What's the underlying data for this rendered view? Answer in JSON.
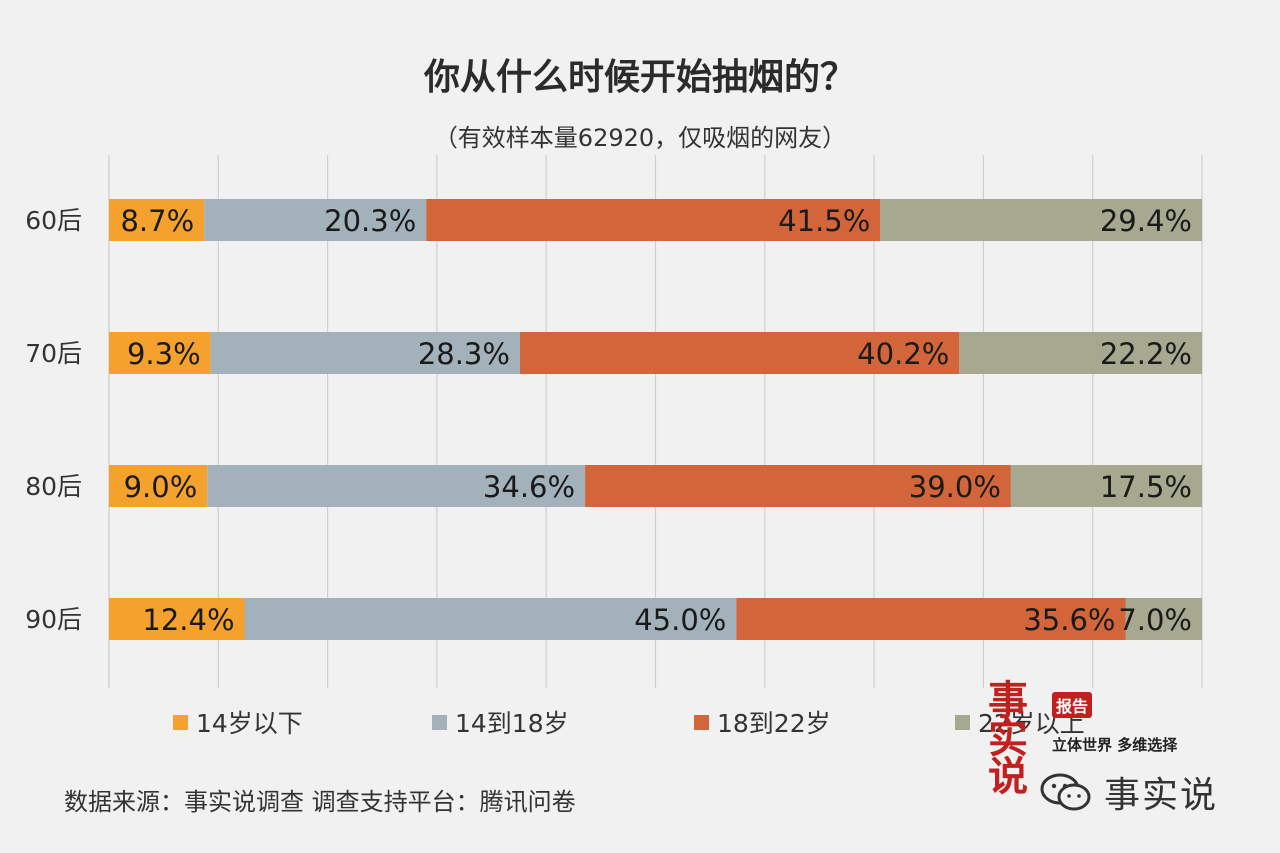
{
  "title": "你从什么时候开始抽烟的？",
  "subtitle": "（有效样本量62920，仅吸烟的网友）",
  "chart_data": {
    "type": "bar",
    "stacked": true,
    "orientation": "horizontal",
    "normalized": true,
    "categories": [
      "60后",
      "70后",
      "80后",
      "90后"
    ],
    "series": [
      {
        "name": "14岁以下",
        "color": "#f4a12e",
        "values": [
          8.7,
          9.3,
          9.0,
          12.4
        ],
        "labels": [
          "8.7%",
          "9.3%",
          "9.0%",
          "12.4%"
        ]
      },
      {
        "name": "14到18岁",
        "color": "#a3b2ba",
        "values": [
          20.3,
          28.3,
          34.6,
          45.0
        ],
        "labels": [
          "20.3%",
          "28.3%",
          "34.6%",
          "45.0%"
        ]
      },
      {
        "name": "18到22岁",
        "color": "#d2663a",
        "values": [
          41.5,
          40.2,
          39.0,
          35.6
        ],
        "labels": [
          "41.5%",
          "40.2%",
          "39.0%",
          "35.6%"
        ]
      },
      {
        "name": "22岁以上",
        "color": "#a6a990",
        "values": [
          29.4,
          22.2,
          17.5,
          7.0
        ],
        "labels": [
          "29.4%",
          "22.2%",
          "17.5%",
          "7.0%"
        ]
      }
    ],
    "xlim": [
      0,
      100
    ],
    "grid": true,
    "legend_position": "bottom"
  },
  "footer": {
    "source": "数据来源：事实说调查    调查支持平台：腾讯问卷"
  },
  "logo": {
    "main": "事实说",
    "badge": "报告",
    "slogan": "立体世界 多维选择",
    "wechat_name": "事实说",
    "icon": "wechat-icon"
  }
}
